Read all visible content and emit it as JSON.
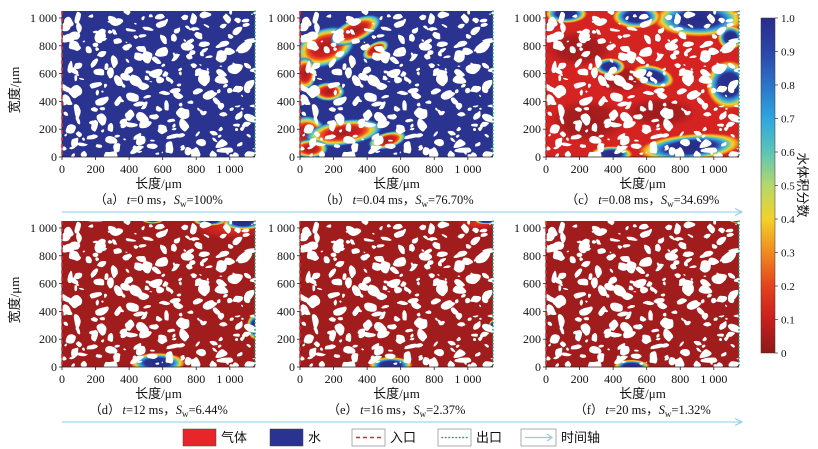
{
  "figure": {
    "x_axis": {
      "label": "长度/μm",
      "ticks": [
        "0",
        "200",
        "400",
        "600",
        "800",
        "1 000"
      ],
      "tick_values": [
        0,
        200,
        400,
        600,
        800,
        1000
      ],
      "range": [
        0,
        1150
      ]
    },
    "y_axis": {
      "label": "宽度/μm",
      "ticks": [
        "0",
        "200",
        "400",
        "600",
        "800",
        "1 000"
      ],
      "tick_values": [
        0,
        200,
        400,
        600,
        800,
        1000
      ],
      "range": [
        0,
        1050
      ]
    },
    "panels": [
      {
        "label": "（a）",
        "t_symbol": "t",
        "t_text": "=0 ms，",
        "s_symbol": "S",
        "s_subscript": "w",
        "s_text": "=100%"
      },
      {
        "label": "（b）",
        "t_symbol": "t",
        "t_text": "=0.04 ms，",
        "s_symbol": "S",
        "s_subscript": "w",
        "s_text": "=76.70%"
      },
      {
        "label": "（c）",
        "t_symbol": "t",
        "t_text": "=0.08 ms，",
        "s_symbol": "S",
        "s_subscript": "w",
        "s_text": "=34.69%"
      },
      {
        "label": "（d）",
        "t_symbol": "t",
        "t_text": "=12 ms，",
        "s_symbol": "S",
        "s_subscript": "w",
        "s_text": "=6.44%"
      },
      {
        "label": "（e）",
        "t_symbol": "t",
        "t_text": "=16 ms，",
        "s_symbol": "S",
        "s_subscript": "w",
        "s_text": "=2.37%"
      },
      {
        "label": "（f）",
        "t_symbol": "t",
        "t_text": "=20 ms，",
        "s_symbol": "S",
        "s_subscript": "w",
        "s_text": "=1.32%"
      }
    ]
  },
  "colorbar": {
    "label": "水体积分数",
    "range": [
      0,
      1
    ],
    "ticks": [
      "0",
      "0.1",
      "0.2",
      "0.3",
      "0.4",
      "0.5",
      "0.6",
      "0.7",
      "0.8",
      "0.9",
      "1.0"
    ],
    "tick_values": [
      0,
      0.1,
      0.2,
      0.3,
      0.4,
      0.5,
      0.6,
      0.7,
      0.8,
      0.9,
      1.0
    ],
    "colors": [
      "#8c1a1a",
      "#c81e1e",
      "#e4431f",
      "#f08a1f",
      "#f4d12a",
      "#b5d86c",
      "#5cc4b6",
      "#2fa6e0",
      "#2c74c9",
      "#2b45a9",
      "#2a2d8a"
    ]
  },
  "legend": [
    {
      "label": "气体",
      "icon": "filled-swatch",
      "color": "#e8262a"
    },
    {
      "label": "水",
      "icon": "filled-swatch",
      "color": "#2b3390"
    },
    {
      "label": "入口",
      "icon": "dashed-line",
      "color": "#e8262a"
    },
    {
      "label": "出口",
      "icon": "dotted-line",
      "color": "#21a179"
    },
    {
      "label": "时间轴",
      "icon": "arrow",
      "color": "#8fcdea"
    }
  ],
  "colors": {
    "water": "#2b3390",
    "water_core": "#262b85",
    "gas": "#d42321",
    "gas_dark": "#a01c1d",
    "inlet": "#e8262a",
    "outlet": "#21a179",
    "time_axis": "#8fcdea",
    "grain": "#ffffff"
  }
}
